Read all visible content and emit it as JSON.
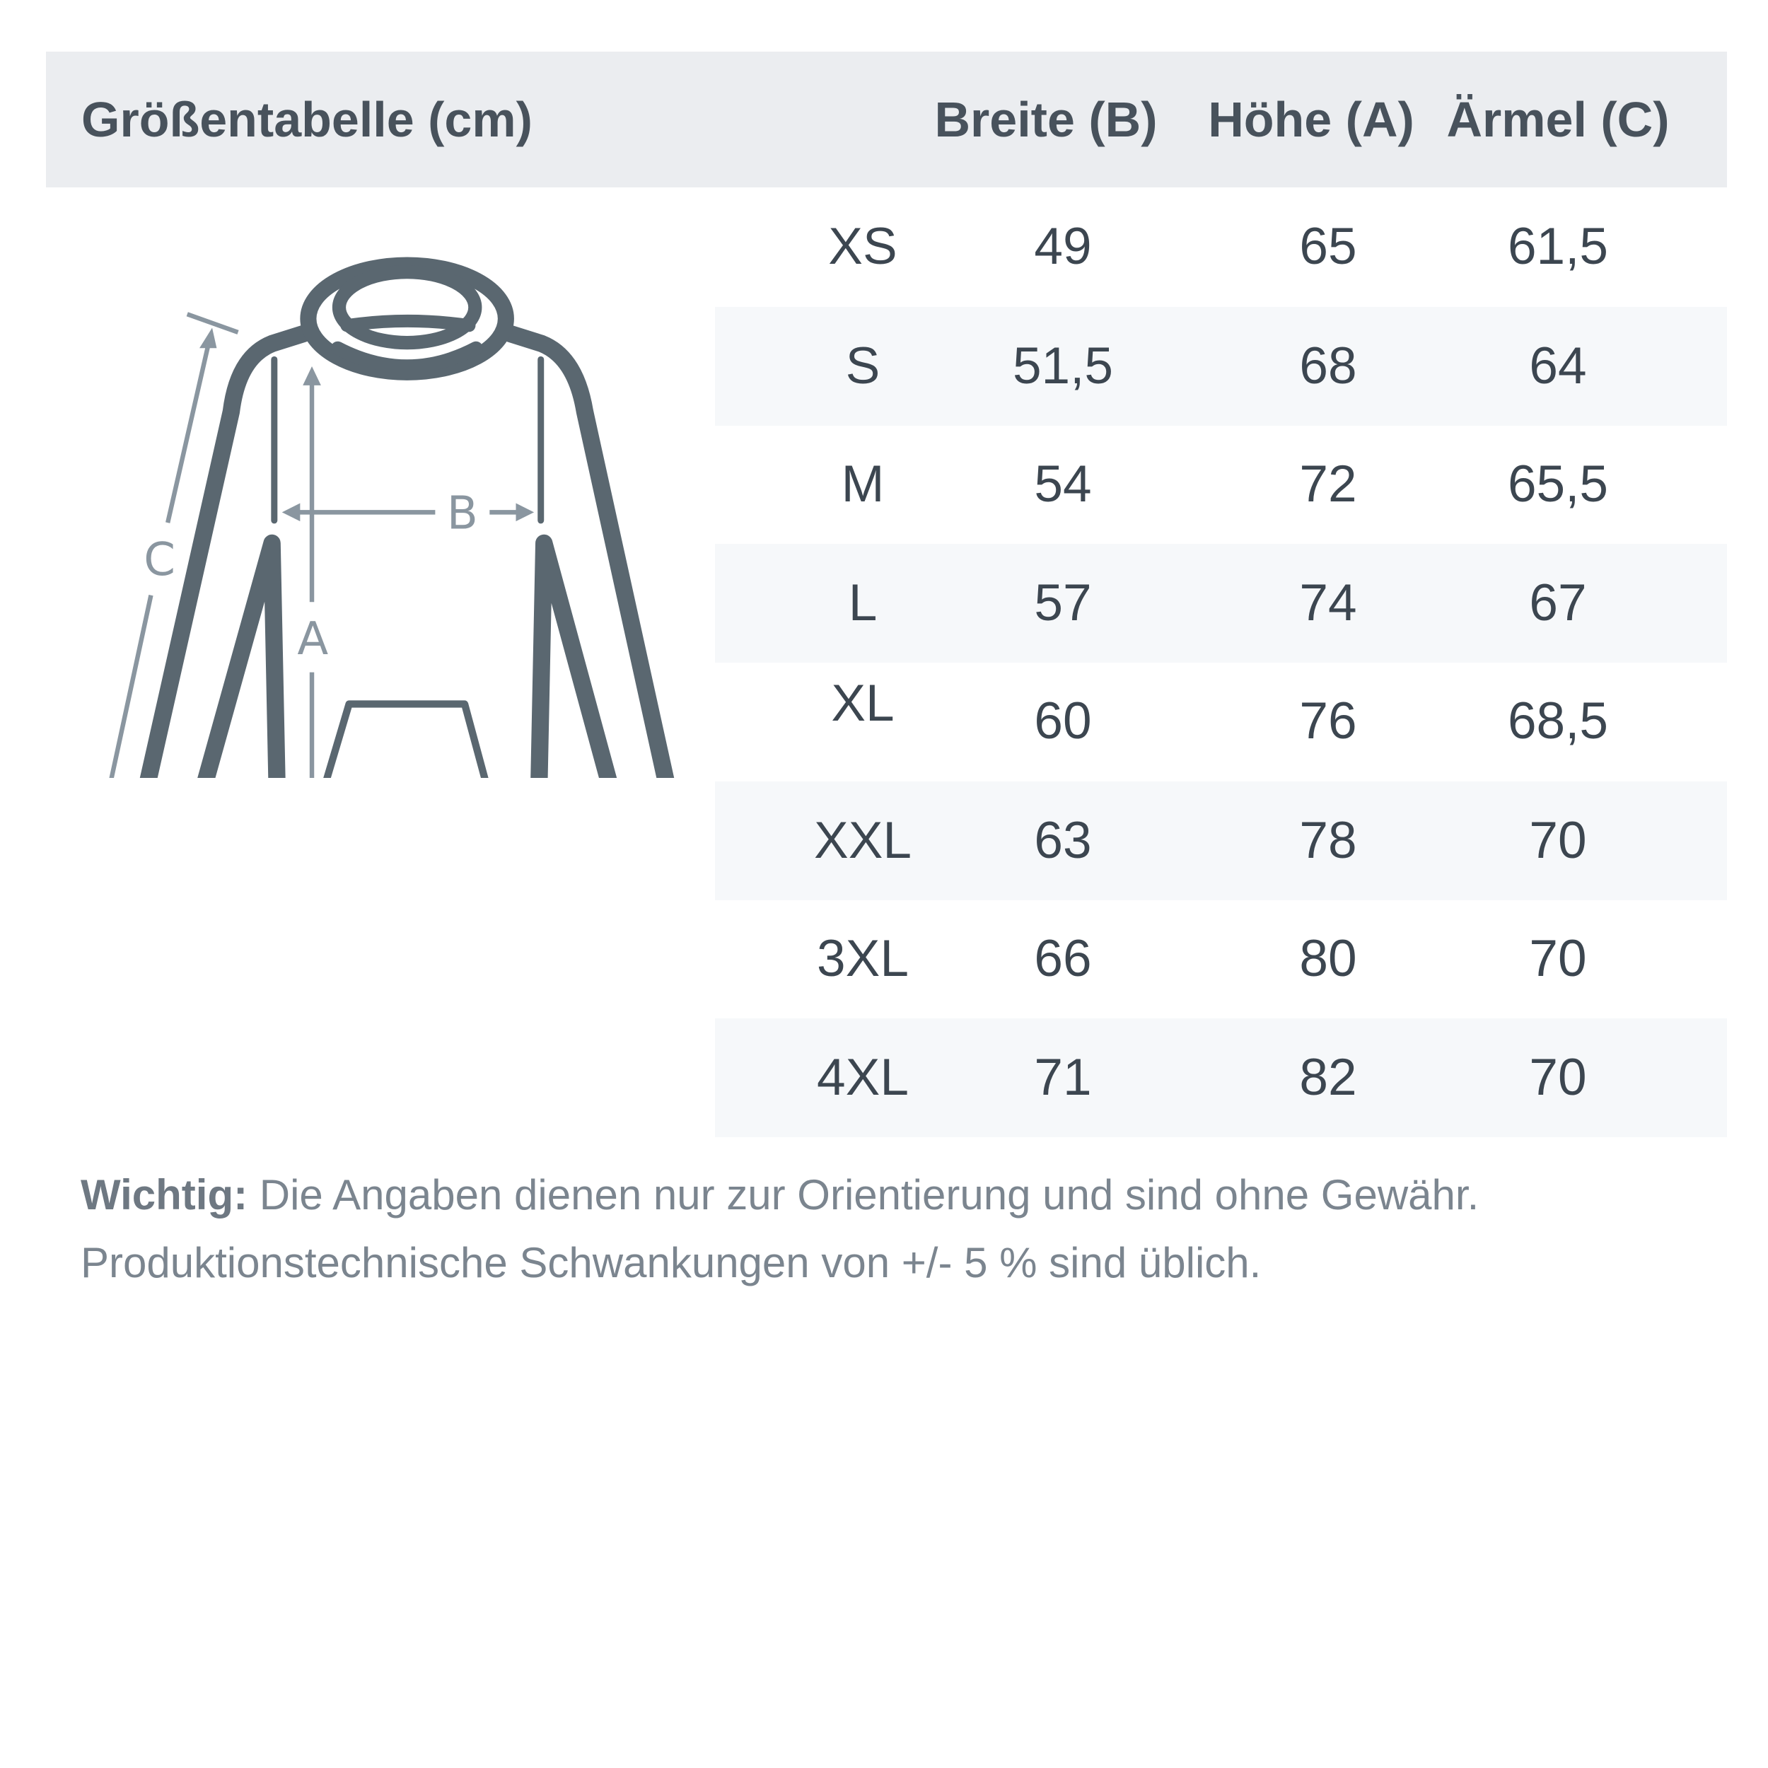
{
  "header": {
    "title": "Größentabelle (cm)",
    "columns": [
      "Breite (B)",
      "Höhe (A)",
      "Ärmel (C)"
    ]
  },
  "diagram": {
    "labels": {
      "a": "A",
      "b": "B",
      "c": "C"
    },
    "outline_color": "#5a6770",
    "measure_color": "#8a96a0"
  },
  "rows": [
    {
      "size": "XS",
      "b": "49",
      "a": "65",
      "c": "61,5"
    },
    {
      "size": "S",
      "b": "51,5",
      "a": "68",
      "c": "64"
    },
    {
      "size": "M",
      "b": "54",
      "a": "72",
      "c": "65,5"
    },
    {
      "size": "L",
      "b": "57",
      "a": "74",
      "c": "67"
    },
    {
      "size": "XL",
      "b": "60",
      "a": "76",
      "c": "68,5"
    },
    {
      "size": "XXL",
      "b": "63",
      "a": "78",
      "c": "70"
    },
    {
      "size": "3XL",
      "b": "66",
      "a": "80",
      "c": "70"
    },
    {
      "size": "4XL",
      "b": "71",
      "a": "82",
      "c": "70"
    }
  ],
  "note": {
    "label": "Wichtig:",
    "line1": " Die Angaben dienen nur zur Orientierung und sind ohne Gewähr.",
    "line2": "Produktionstechnische Schwankungen von +/- 5 % sind üblich."
  }
}
